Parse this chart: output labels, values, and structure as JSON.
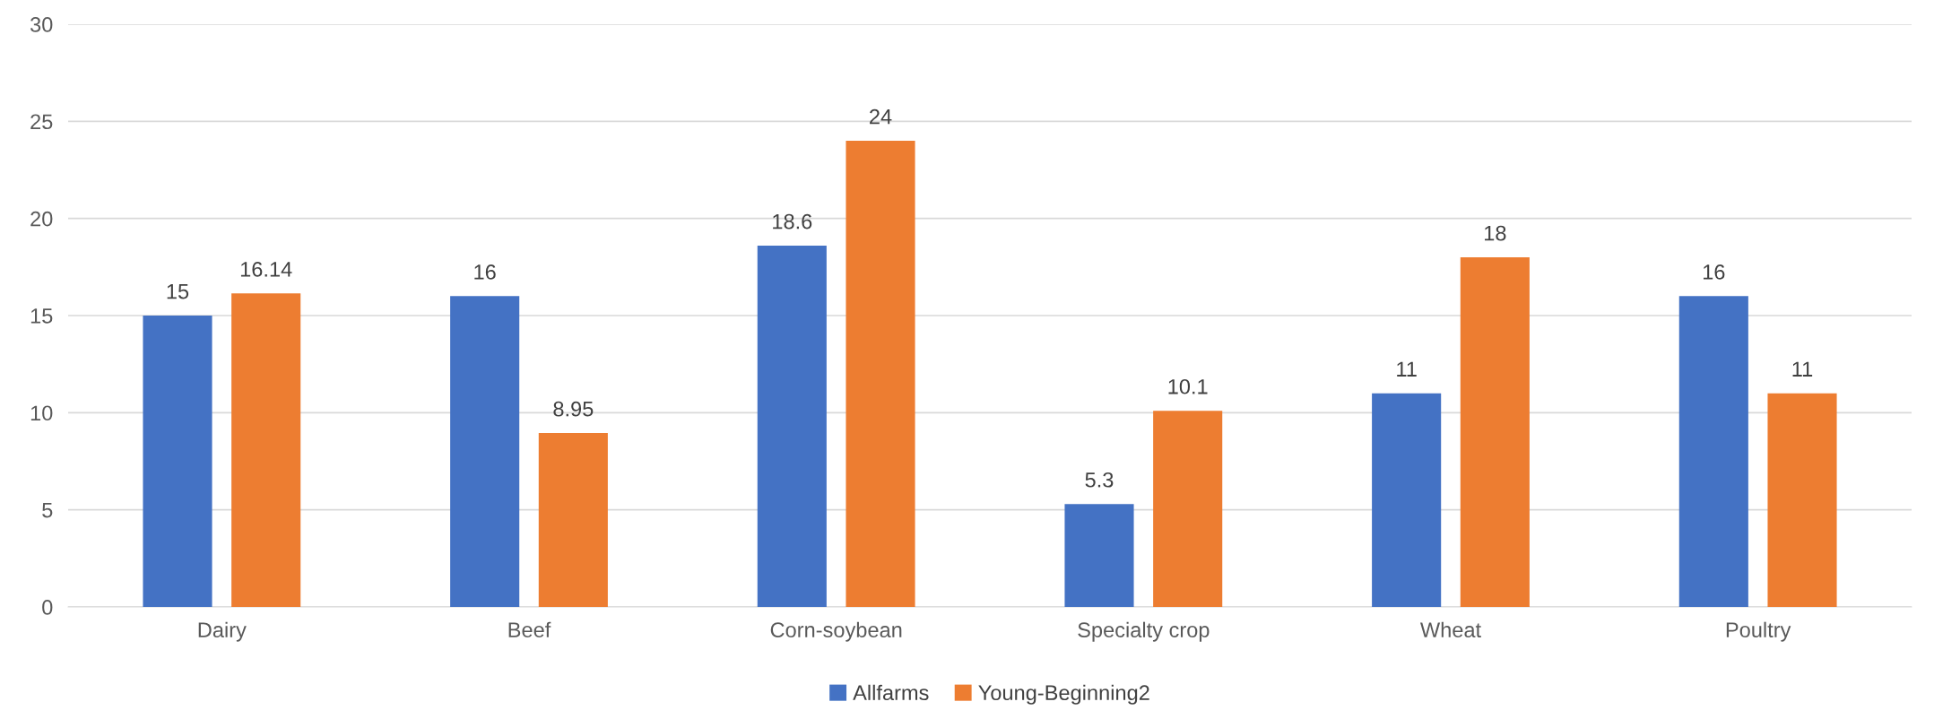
{
  "chart_data": {
    "type": "bar",
    "categories": [
      "Dairy",
      "Beef",
      "Corn-soybean",
      "Specialty crop",
      "Wheat",
      "Poultry"
    ],
    "series": [
      {
        "name": "Allfarms",
        "color": "#4472c4",
        "values": [
          15,
          16,
          18.6,
          5.3,
          11,
          16
        ]
      },
      {
        "name": "Young-Beginning2",
        "color": "#ed7d31",
        "values": [
          16.14,
          8.95,
          24,
          10.1,
          18,
          11
        ]
      }
    ],
    "ylim": [
      0,
      30
    ],
    "yticks": [
      0,
      5,
      10,
      15,
      20,
      25,
      30
    ],
    "grid": "y",
    "legend": "bottom",
    "data_labels": true
  }
}
